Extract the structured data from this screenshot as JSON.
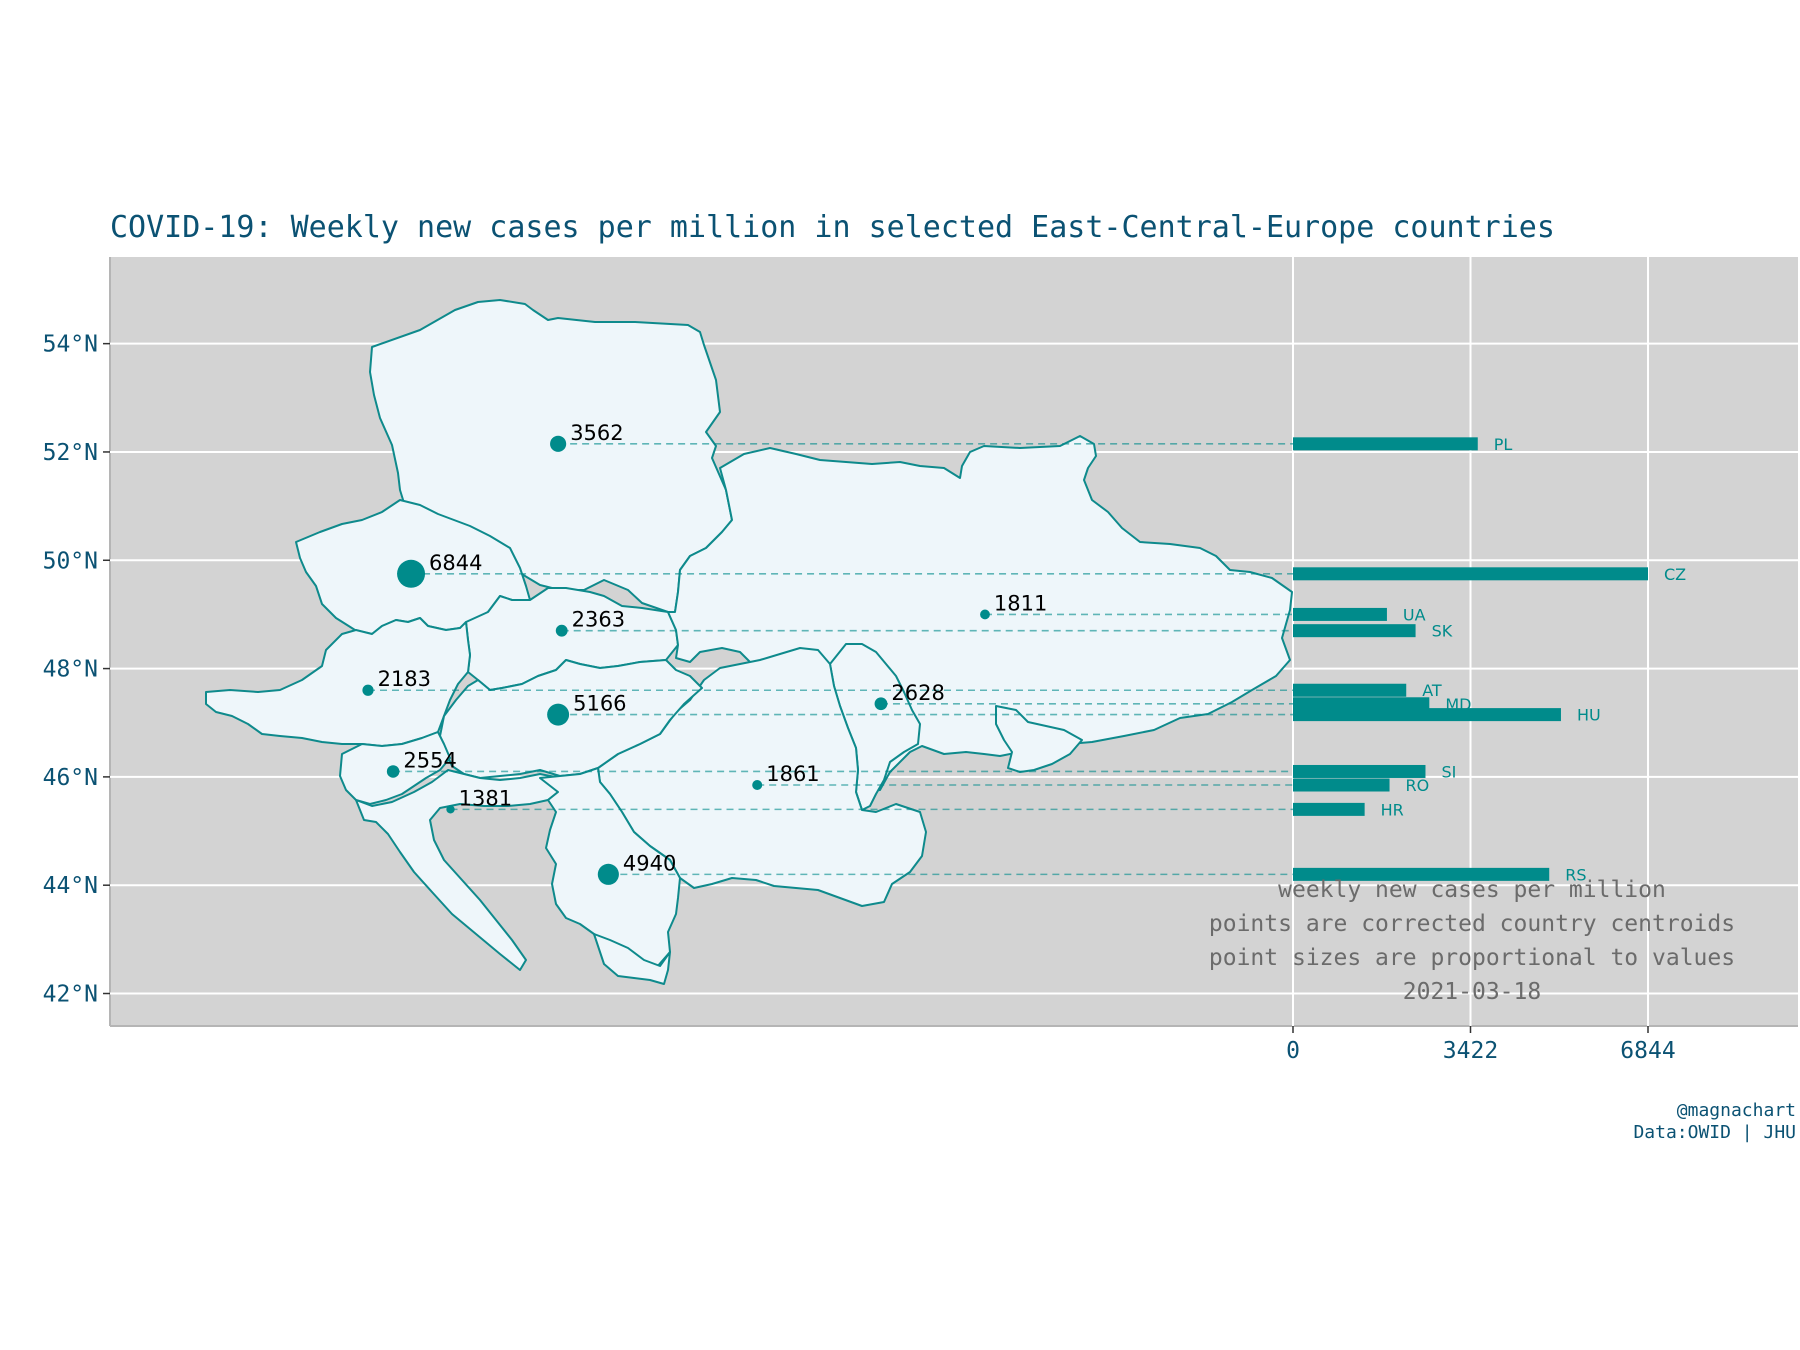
{
  "colors": {
    "accent": "#008b8b",
    "title": "#0b5273",
    "panel": "#d3d3d3",
    "land": "#eef6fa",
    "border": "#0e8a8c",
    "note": "#6b6b6b",
    "grid": "#ffffff"
  },
  "title": "COVID-19: Weekly new cases per million in selected East-Central-Europe countries",
  "notes": [
    "weekly new cases per million",
    "points are corrected country centroids",
    "point sizes are proportional to values",
    "2021-03-18"
  ],
  "credit": {
    "author": "@magnachart",
    "source": "Data:OWID | JHU"
  },
  "chart_data": {
    "type": "map-bubble-bar",
    "title": "COVID-19: Weekly new cases per million in selected East-Central-Europe countries",
    "y_axis": {
      "ticks": [
        42,
        44,
        46,
        48,
        50,
        52,
        54
      ],
      "tick_labels": [
        "42°N",
        "44°N",
        "46°N",
        "48°N",
        "50°N",
        "52°N",
        "54°N"
      ],
      "range": [
        41.4,
        55.6
      ]
    },
    "x_axis": {
      "ticks": [
        0,
        3422,
        6844
      ],
      "tick_labels": [
        "0",
        "3422",
        "6844"
      ],
      "range": [
        0,
        9500
      ]
    },
    "grid": true,
    "series": [
      {
        "code": "PL",
        "value": 3562,
        "lat": 52.15,
        "lon": 19.4
      },
      {
        "code": "CZ",
        "value": 6844,
        "lat": 49.75,
        "lon": 15.3
      },
      {
        "code": "UA",
        "value": 1811,
        "lat": 49.0,
        "lon": 31.3
      },
      {
        "code": "SK",
        "value": 2363,
        "lat": 48.7,
        "lon": 19.5
      },
      {
        "code": "AT",
        "value": 2183,
        "lat": 47.6,
        "lon": 14.1
      },
      {
        "code": "MD",
        "value": 2628,
        "lat": 47.35,
        "lon": 28.4
      },
      {
        "code": "HU",
        "value": 5166,
        "lat": 47.15,
        "lon": 19.4
      },
      {
        "code": "SI",
        "value": 2554,
        "lat": 46.1,
        "lon": 14.8
      },
      {
        "code": "RO",
        "value": 1861,
        "lat": 45.85,
        "lon": 24.95
      },
      {
        "code": "HR",
        "value": 1381,
        "lat": 45.4,
        "lon": 16.4
      },
      {
        "code": "RS",
        "value": 4940,
        "lat": 44.2,
        "lon": 20.8
      }
    ]
  }
}
